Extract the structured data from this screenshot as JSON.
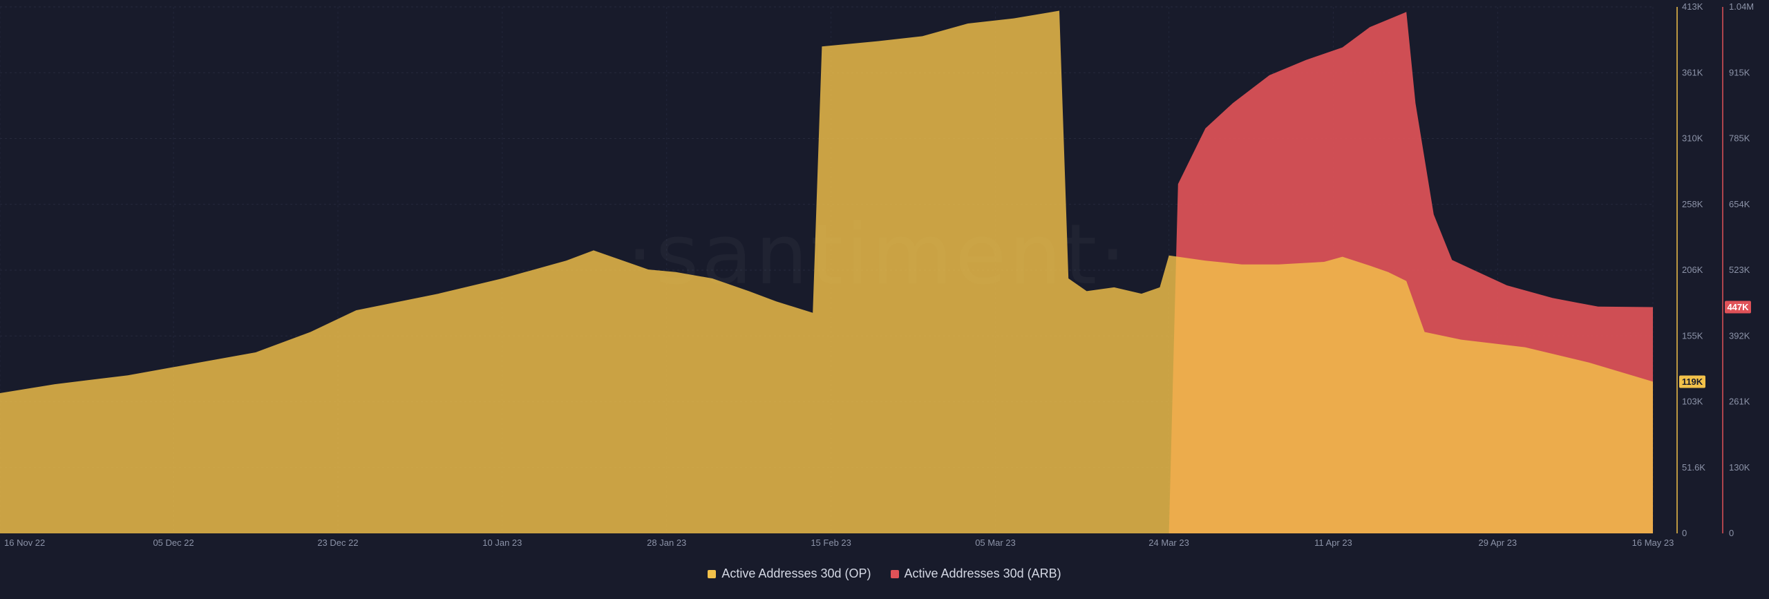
{
  "watermark": "·santiment·",
  "chart_data": {
    "type": "area",
    "title": "",
    "x_start": "16 Nov 22",
    "x_end": "16 May 23",
    "x_ticks": [
      "16 Nov 22",
      "05 Dec 22",
      "23 Dec 22",
      "10 Jan 23",
      "28 Jan 23",
      "15 Feb 23",
      "05 Mar 23",
      "24 Mar 23",
      "11 Apr 23",
      "29 Apr 23",
      "16 May 23"
    ],
    "y_left": {
      "min": 0,
      "max": 413000,
      "ticks": [
        "0",
        "51.6K",
        "103K",
        "155K",
        "206K",
        "258K",
        "310K",
        "361K",
        "413K"
      ]
    },
    "y_right": {
      "min": 0,
      "max": 1040000,
      "ticks": [
        "0",
        "130K",
        "261K",
        "392K",
        "523K",
        "654K",
        "785K",
        "915K",
        "1.04M"
      ]
    },
    "grid": true,
    "legend_position": "bottom-center",
    "series": [
      {
        "name": "Active Addresses 30d (OP)",
        "axis": "left",
        "color": "#f2c14a",
        "last_value_label": "119K",
        "points": [
          [
            "16 Nov 22",
            110000
          ],
          [
            "22 Nov 22",
            117000
          ],
          [
            "30 Nov 22",
            124000
          ],
          [
            "07 Dec 22",
            133000
          ],
          [
            "14 Dec 22",
            142000
          ],
          [
            "20 Dec 22",
            158000
          ],
          [
            "25 Dec 22",
            175000
          ],
          [
            "03 Jan 23",
            188000
          ],
          [
            "10 Jan 23",
            200000
          ],
          [
            "17 Jan 23",
            214000
          ],
          [
            "20 Jan 23",
            222000
          ],
          [
            "22 Jan 23",
            217000
          ],
          [
            "26 Jan 23",
            207000
          ],
          [
            "29 Jan 23",
            205000
          ],
          [
            "02 Feb 23",
            200000
          ],
          [
            "06 Feb 23",
            190000
          ],
          [
            "09 Feb 23",
            182000
          ],
          [
            "13 Feb 23",
            173000
          ],
          [
            "14 Feb 23",
            382000
          ],
          [
            "20 Feb 23",
            386000
          ],
          [
            "25 Feb 23",
            390000
          ],
          [
            "02 Mar 23",
            400000
          ],
          [
            "07 Mar 23",
            404000
          ],
          [
            "12 Mar 23",
            410000
          ],
          [
            "13 Mar 23",
            200000
          ],
          [
            "15 Mar 23",
            190000
          ],
          [
            "18 Mar 23",
            193000
          ],
          [
            "21 Mar 23",
            188000
          ],
          [
            "23 Mar 23",
            193000
          ],
          [
            "24 Mar 23",
            218000
          ],
          [
            "28 Mar 23",
            214000
          ],
          [
            "01 Apr 23",
            211000
          ],
          [
            "05 Apr 23",
            211000
          ],
          [
            "10 Apr 23",
            213000
          ],
          [
            "12 Apr 23",
            217000
          ],
          [
            "15 Apr 23",
            210000
          ],
          [
            "17 Apr 23",
            205000
          ],
          [
            "19 Apr 23",
            198000
          ],
          [
            "20 Apr 23",
            178000
          ],
          [
            "21 Apr 23",
            158000
          ],
          [
            "25 Apr 23",
            152000
          ],
          [
            "02 May 23",
            146000
          ],
          [
            "09 May 23",
            134000
          ],
          [
            "16 May 23",
            119000
          ]
        ]
      },
      {
        "name": "Active Addresses 30d (ARB)",
        "axis": "right",
        "color": "#e05258",
        "last_value_label": "447K",
        "points": [
          [
            "24 Mar 23",
            0
          ],
          [
            "25 Mar 23",
            690000
          ],
          [
            "28 Mar 23",
            800000
          ],
          [
            "31 Mar 23",
            850000
          ],
          [
            "04 Apr 23",
            905000
          ],
          [
            "08 Apr 23",
            935000
          ],
          [
            "12 Apr 23",
            960000
          ],
          [
            "15 Apr 23",
            1000000
          ],
          [
            "19 Apr 23",
            1030000
          ],
          [
            "20 Apr 23",
            850000
          ],
          [
            "22 Apr 23",
            630000
          ],
          [
            "24 Apr 23",
            540000
          ],
          [
            "30 Apr 23",
            490000
          ],
          [
            "05 May 23",
            465000
          ],
          [
            "10 May 23",
            448000
          ],
          [
            "16 May 23",
            447000
          ]
        ]
      }
    ]
  }
}
